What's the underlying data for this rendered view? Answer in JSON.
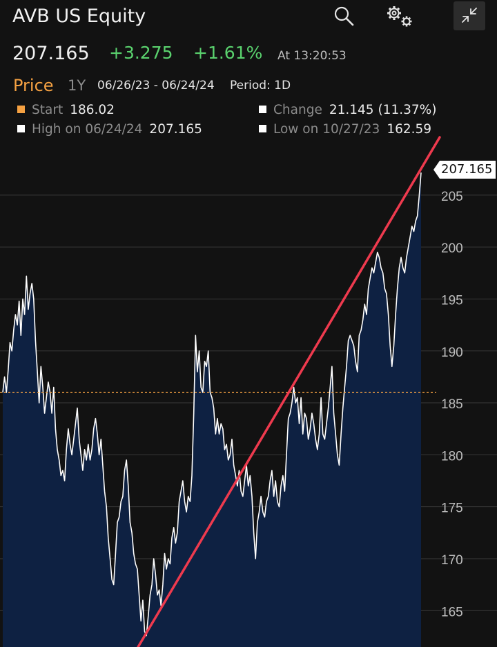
{
  "header": {
    "title": "AVB US Equity",
    "search_icon": "search-icon",
    "settings_icon": "gear-icon",
    "collapse_icon": "collapse-icon"
  },
  "quote": {
    "last": "207.165",
    "change": "+3.275",
    "change_pct": "+1.61%",
    "time": "At 13:20:53"
  },
  "toolbar": {
    "field": "Price",
    "range_button": "1Y",
    "date_range": "06/26/23 - 06/24/24",
    "period": "Period: 1D"
  },
  "stats": {
    "start_label": "Start",
    "start_value": "186.02",
    "change_label": "Change",
    "change_value": "21.145 (11.37%)",
    "high_label": "High on 06/24/24",
    "high_value": "207.165",
    "low_label": "Low on 10/27/23",
    "low_value": "162.59"
  },
  "colors": {
    "background": "#121212",
    "accent": "#f5a142",
    "positive": "#5ad26e",
    "area_fill": "#0e2142",
    "trend_line": "#ee3a4e"
  },
  "chart_data": {
    "type": "area",
    "ylim": [
      161.5,
      210.5
    ],
    "y_ticks": [
      "165",
      "170",
      "175",
      "180",
      "185",
      "190",
      "195",
      "200",
      "205"
    ],
    "last_value_label": "207.165",
    "start_reference_line": 186.02,
    "grid": true,
    "values": [
      186.0,
      187.5,
      186.0,
      188.2,
      190.8,
      190.0,
      192.0,
      193.5,
      192.5,
      194.8,
      191.5,
      195.0,
      193.5,
      197.2,
      194.0,
      195.5,
      196.5,
      195.0,
      191.0,
      188.0,
      185.0,
      188.5,
      186.5,
      184.0,
      185.5,
      187.0,
      186.0,
      184.0,
      186.5,
      182.5,
      180.5,
      179.5,
      178.0,
      178.5,
      177.5,
      180.5,
      182.5,
      181.0,
      180.0,
      181.5,
      183.0,
      184.5,
      181.5,
      180.0,
      178.5,
      180.5,
      179.5,
      181.0,
      179.5,
      180.5,
      182.5,
      183.5,
      182.0,
      180.0,
      181.5,
      179.0,
      176.5,
      175.0,
      172.0,
      170.0,
      168.0,
      167.5,
      170.5,
      173.5,
      174.0,
      175.5,
      176.0,
      178.5,
      179.5,
      177.0,
      173.5,
      172.5,
      170.5,
      169.5,
      169.0,
      166.5,
      164.0,
      166.0,
      163.0,
      162.59,
      164.5,
      166.5,
      167.5,
      170.0,
      168.5,
      166.5,
      167.0,
      165.5,
      167.5,
      170.5,
      169.0,
      170.0,
      169.5,
      172.0,
      173.0,
      171.5,
      172.5,
      175.5,
      176.5,
      177.5,
      175.5,
      174.5,
      176.0,
      175.5,
      178.0,
      184.0,
      191.5,
      188.0,
      190.0,
      186.5,
      186.0,
      189.0,
      188.5,
      190.0,
      186.0,
      185.5,
      184.5,
      182.0,
      183.5,
      182.0,
      183.0,
      182.5,
      180.5,
      181.0,
      179.5,
      180.0,
      181.5,
      179.0,
      178.0,
      177.0,
      178.5,
      176.5,
      176.0,
      177.5,
      179.0,
      177.0,
      178.0,
      176.0,
      172.5,
      170.0,
      173.5,
      174.5,
      176.0,
      174.5,
      174.0,
      175.5,
      176.0,
      177.5,
      178.5,
      176.0,
      177.5,
      175.5,
      175.0,
      177.0,
      178.0,
      176.5,
      180.0,
      183.5,
      184.0,
      185.0,
      186.5,
      185.0,
      185.5,
      183.0,
      185.5,
      182.0,
      184.0,
      183.5,
      181.5,
      182.5,
      184.0,
      183.0,
      181.5,
      180.5,
      182.0,
      185.5,
      182.0,
      181.5,
      183.0,
      184.5,
      186.5,
      188.5,
      184.0,
      182.0,
      180.0,
      179.0,
      182.0,
      184.5,
      186.5,
      188.5,
      191.0,
      191.5,
      191.0,
      190.5,
      189.0,
      188.0,
      191.5,
      192.0,
      193.0,
      194.5,
      193.5,
      196.0,
      197.0,
      198.0,
      197.5,
      198.5,
      199.5,
      199.0,
      198.0,
      197.5,
      196.0,
      195.5,
      193.5,
      190.5,
      188.5,
      190.5,
      193.5,
      196.0,
      198.0,
      199.0,
      198.0,
      197.5,
      199.0,
      200.0,
      201.0,
      202.0,
      201.5,
      202.5,
      203.0,
      205.0,
      207.165
    ]
  }
}
